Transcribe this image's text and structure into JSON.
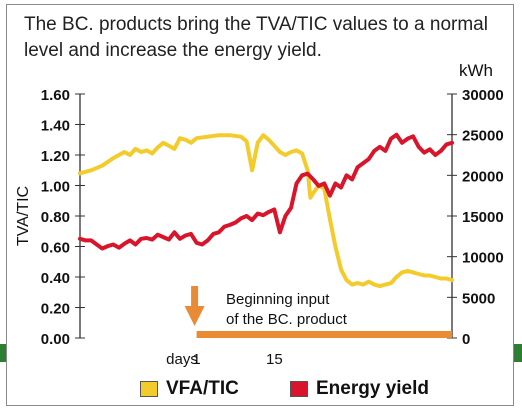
{
  "title": "The BC. products bring the TVA/TIC values to a normal level and increase the energy yield.",
  "chart_data": {
    "type": "line",
    "ylabel_left": "TVA/TIC",
    "ylabel_right": "kWh",
    "left_ticks": [
      "0.00",
      "0.20",
      "0.40",
      "0.60",
      "0.80",
      "1.00",
      "1.20",
      "1.40",
      "1.60"
    ],
    "right_ticks": [
      "0",
      "5000",
      "10000",
      "15000",
      "20000",
      "25000",
      "30000"
    ],
    "ylim_left": [
      0,
      1.6
    ],
    "ylim_right": [
      0,
      30000
    ],
    "x_labels": [
      "days",
      "1",
      "15"
    ],
    "annotation": "Beginning input\nof the BC. product",
    "series": [
      {
        "name": "VFA/TIC",
        "axis": "left",
        "color": "#f3cb2b",
        "points": [
          [
            -20,
            1.08
          ],
          [
            -18,
            1.1
          ],
          [
            -16,
            1.13
          ],
          [
            -14,
            1.18
          ],
          [
            -12,
            1.22
          ],
          [
            -11,
            1.2
          ],
          [
            -10,
            1.24
          ],
          [
            -9,
            1.22
          ],
          [
            -8,
            1.23
          ],
          [
            -7,
            1.21
          ],
          [
            -6,
            1.25
          ],
          [
            -5,
            1.28
          ],
          [
            -4,
            1.26
          ],
          [
            -3,
            1.24
          ],
          [
            -2,
            1.31
          ],
          [
            -1,
            1.3
          ],
          [
            0,
            1.28
          ],
          [
            1,
            1.31
          ],
          [
            3,
            1.32
          ],
          [
            5,
            1.33
          ],
          [
            7,
            1.33
          ],
          [
            9,
            1.32
          ],
          [
            10,
            1.29
          ],
          [
            11,
            1.1
          ],
          [
            12,
            1.28
          ],
          [
            13,
            1.33
          ],
          [
            14,
            1.3
          ],
          [
            15,
            1.26
          ],
          [
            16,
            1.22
          ],
          [
            17,
            1.2
          ],
          [
            18,
            1.22
          ],
          [
            19,
            1.23
          ],
          [
            20,
            1.21
          ],
          [
            21,
            1.1
          ],
          [
            21.5,
            0.92
          ],
          [
            22,
            0.95
          ],
          [
            23,
            1.0
          ],
          [
            24,
            0.98
          ],
          [
            25,
            0.78
          ],
          [
            26,
            0.6
          ],
          [
            27,
            0.45
          ],
          [
            28,
            0.38
          ],
          [
            29,
            0.35
          ],
          [
            30,
            0.36
          ],
          [
            31,
            0.35
          ],
          [
            32,
            0.37
          ],
          [
            33,
            0.35
          ],
          [
            34,
            0.34
          ],
          [
            35,
            0.35
          ],
          [
            36,
            0.36
          ],
          [
            37,
            0.4
          ],
          [
            38,
            0.43
          ],
          [
            39,
            0.44
          ],
          [
            40,
            0.43
          ],
          [
            41,
            0.42
          ],
          [
            42,
            0.41
          ],
          [
            43,
            0.41
          ],
          [
            44,
            0.4
          ],
          [
            45,
            0.39
          ],
          [
            46,
            0.39
          ],
          [
            47,
            0.38
          ]
        ]
      },
      {
        "name": "Energy yield",
        "axis": "right",
        "color": "#d9152b",
        "points": [
          [
            -20,
            12200
          ],
          [
            -19,
            12000
          ],
          [
            -18,
            12000
          ],
          [
            -17,
            11500
          ],
          [
            -16,
            11000
          ],
          [
            -15,
            11300
          ],
          [
            -14,
            11500
          ],
          [
            -13,
            11100
          ],
          [
            -12,
            11600
          ],
          [
            -11,
            12000
          ],
          [
            -10,
            11500
          ],
          [
            -9,
            12200
          ],
          [
            -8,
            12300
          ],
          [
            -7,
            12100
          ],
          [
            -6,
            12700
          ],
          [
            -5,
            12400
          ],
          [
            -4,
            12100
          ],
          [
            -3,
            13000
          ],
          [
            -2,
            12200
          ],
          [
            -1,
            12600
          ],
          [
            0,
            12800
          ],
          [
            1,
            11700
          ],
          [
            2,
            11500
          ],
          [
            3,
            12000
          ],
          [
            4,
            12800
          ],
          [
            5,
            13000
          ],
          [
            6,
            13700
          ],
          [
            7,
            13900
          ],
          [
            8,
            14200
          ],
          [
            9,
            14700
          ],
          [
            10,
            15000
          ],
          [
            11,
            14500
          ],
          [
            12,
            15300
          ],
          [
            13,
            15100
          ],
          [
            14,
            15500
          ],
          [
            15,
            15800
          ],
          [
            16,
            13000
          ],
          [
            17,
            15000
          ],
          [
            18,
            16000
          ],
          [
            19,
            19000
          ],
          [
            20,
            20000
          ],
          [
            21,
            20200
          ],
          [
            22,
            19500
          ],
          [
            23,
            18700
          ],
          [
            24,
            19000
          ],
          [
            25,
            17500
          ],
          [
            26,
            19000
          ],
          [
            27,
            18500
          ],
          [
            28,
            20000
          ],
          [
            29,
            19500
          ],
          [
            30,
            21000
          ],
          [
            31,
            21500
          ],
          [
            32,
            22000
          ],
          [
            33,
            23000
          ],
          [
            34,
            23500
          ],
          [
            35,
            23000
          ],
          [
            36,
            24500
          ],
          [
            37,
            25000
          ],
          [
            38,
            24000
          ],
          [
            39,
            24500
          ],
          [
            40,
            24800
          ],
          [
            41,
            23500
          ],
          [
            42,
            22800
          ],
          [
            43,
            23200
          ],
          [
            44,
            22500
          ],
          [
            45,
            23000
          ],
          [
            46,
            23800
          ],
          [
            47,
            24000
          ]
        ]
      }
    ],
    "input_bar": {
      "from_day": 1,
      "to_day": 47,
      "color": "#e98b34"
    },
    "arrow_color": "#e98b34",
    "legend": [
      {
        "label": "VFA/TIC",
        "color": "#f3cb2b"
      },
      {
        "label": "Energy yield",
        "color": "#d9152b"
      }
    ],
    "legend_position": "bottom",
    "grid": false
  }
}
